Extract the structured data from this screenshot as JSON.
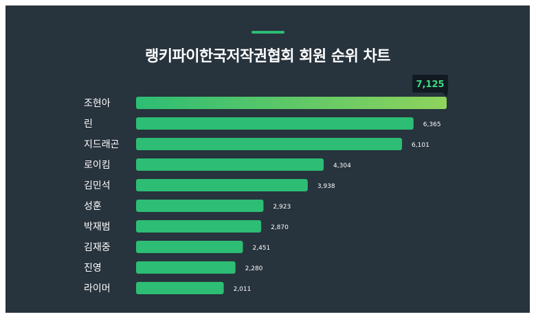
{
  "title": "랭키파이한국저작권협회 회원 순위 차트",
  "colors": {
    "background": "#27333d",
    "bar": "#2dbd74",
    "top_bar_start": "#2dbd74",
    "top_bar_end": "#8fd35c",
    "label_text": "#ffffff",
    "tooltip_bg": "#111a21",
    "tooltip_text": "#3ddc84"
  },
  "chart_data": {
    "type": "bar",
    "orientation": "horizontal",
    "title": "랭키파이한국저작권협회 회원 순위 차트",
    "categories": [
      "조현아",
      "린",
      "지드래곤",
      "로이킴",
      "김민석",
      "성훈",
      "박재범",
      "김재중",
      "진영",
      "라이머"
    ],
    "values": [
      7125,
      6365,
      6101,
      4304,
      3938,
      2923,
      2870,
      2451,
      2280,
      2011
    ],
    "value_labels": [
      "7,125",
      "6,365",
      "6,101",
      "4,304",
      "3,938",
      "2,923",
      "2,870",
      "2,451",
      "2,280",
      "2,011"
    ],
    "highlight_index": 0,
    "xlim": [
      0,
      7125
    ],
    "grid": false,
    "legend": "none"
  }
}
